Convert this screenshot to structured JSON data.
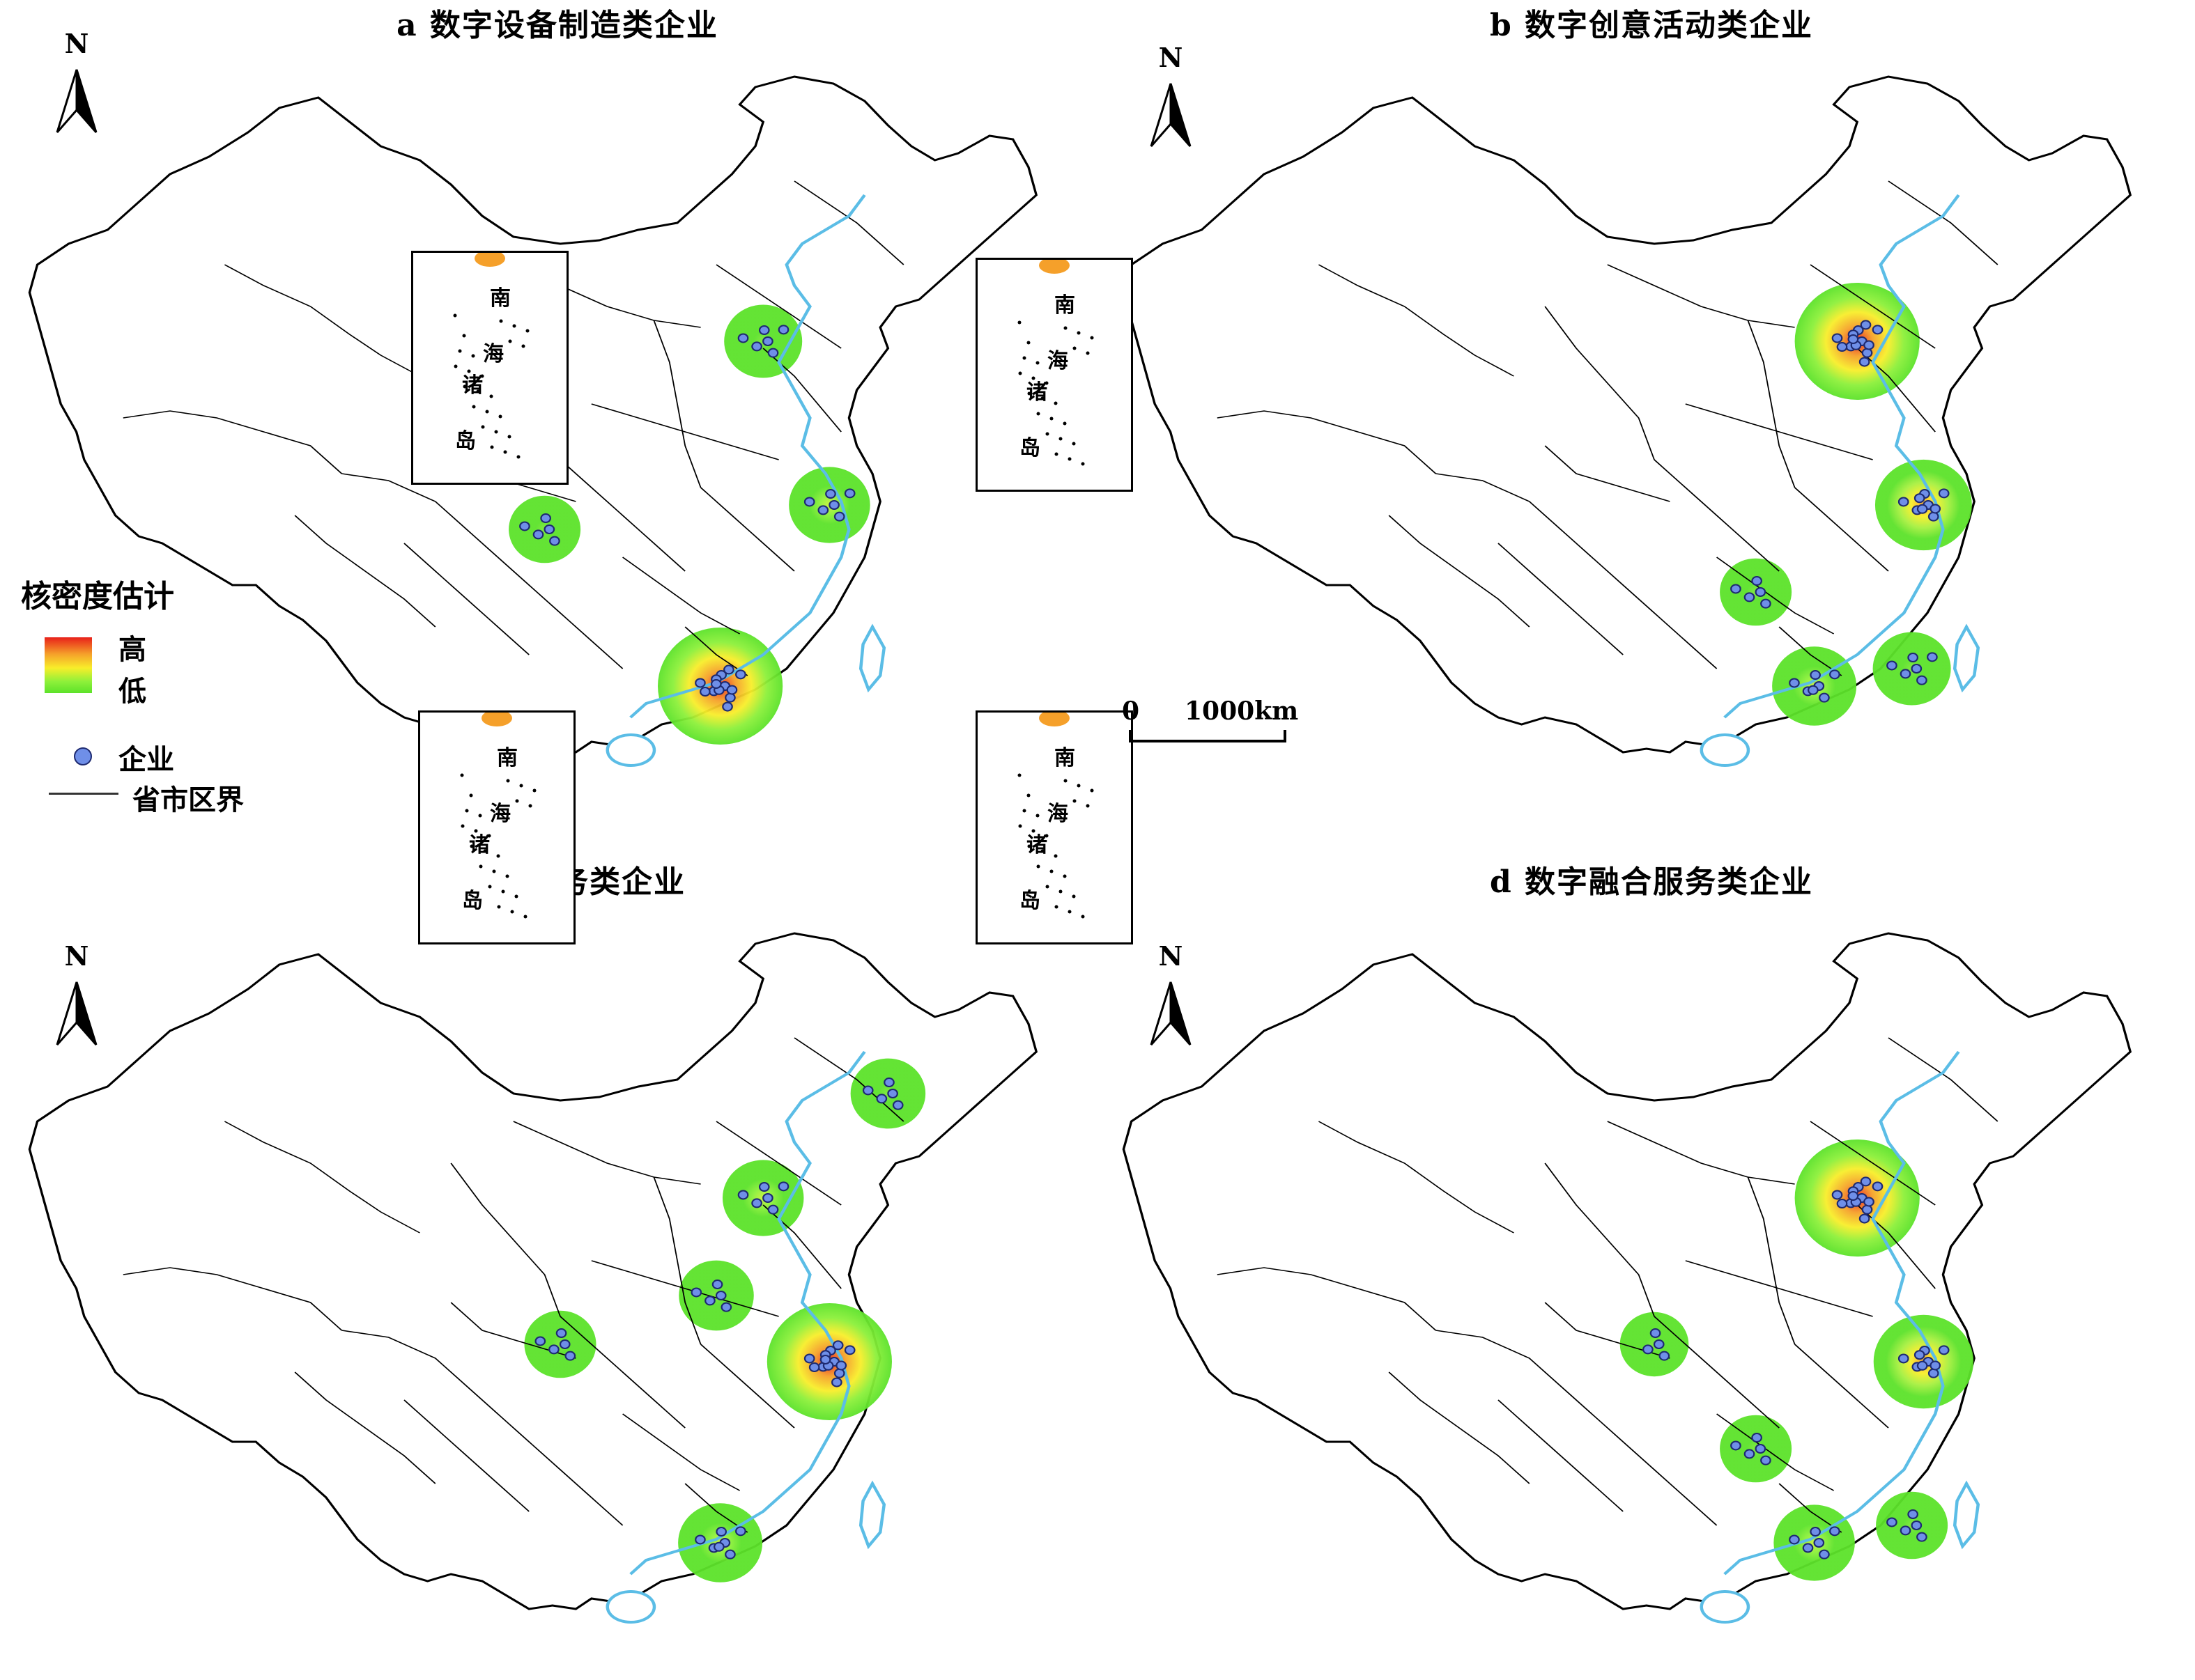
{
  "panels": [
    {
      "id": "a",
      "title": "a  数字设备制造类企业",
      "inset_labels": [
        "南",
        "海",
        "诸",
        "岛"
      ]
    },
    {
      "id": "b",
      "title": "b  数字创意活动类企业",
      "inset_labels": [
        "南",
        "海",
        "诸",
        "岛"
      ]
    },
    {
      "id": "c",
      "title": "c  设计服务类企业",
      "inset_labels": [
        "南",
        "海",
        "诸",
        "岛"
      ]
    },
    {
      "id": "d",
      "title": "d  数字融合服务类企业",
      "inset_labels": [
        "南",
        "海",
        "诸",
        "岛"
      ]
    }
  ],
  "north_label": "N",
  "legend": {
    "title": "核密度估计",
    "high": "高",
    "low": "低",
    "enterprise": "企业",
    "boundary": "省市区界"
  },
  "scale_bar": {
    "zero": "0",
    "distance": "1000km"
  },
  "colors": {
    "density_high": "#e8201a",
    "density_mid": "#f8ee2a",
    "density_low": "#5ce22a",
    "enterprise_dot": "#6f8fe8",
    "coastline": "#5bbde6",
    "boundary": "#000000"
  },
  "density_hotspots": {
    "a": [
      {
        "region": "Beijing",
        "level": 0.25
      },
      {
        "region": "Sichuan-Chongqing",
        "level": 0.15
      },
      {
        "region": "Yangtze River Delta",
        "level": 0.3
      },
      {
        "region": "Pearl River Delta",
        "level": 1.0
      }
    ],
    "b": [
      {
        "region": "Beijing",
        "level": 1.0
      },
      {
        "region": "Yangtze River Delta",
        "level": 0.55
      },
      {
        "region": "Pearl River Delta",
        "level": 0.35
      },
      {
        "region": "Fujian",
        "level": 0.25
      },
      {
        "region": "Hunan",
        "level": 0.15
      }
    ],
    "c": [
      {
        "region": "Beijing",
        "level": 0.3
      },
      {
        "region": "Liaoning",
        "level": 0.2
      },
      {
        "region": "Shanxi",
        "level": 0.2
      },
      {
        "region": "Yangtze River Delta",
        "level": 1.0
      },
      {
        "region": "Pearl River Delta",
        "level": 0.35
      },
      {
        "region": "Chongqing",
        "level": 0.15
      }
    ],
    "d": [
      {
        "region": "Beijing",
        "level": 1.0
      },
      {
        "region": "Yangtze River Delta",
        "level": 0.6
      },
      {
        "region": "Pearl River Delta",
        "level": 0.3
      },
      {
        "region": "Hunan",
        "level": 0.15
      },
      {
        "region": "Fujian",
        "level": 0.15
      },
      {
        "region": "Chongqing",
        "level": 0.1
      }
    ]
  }
}
